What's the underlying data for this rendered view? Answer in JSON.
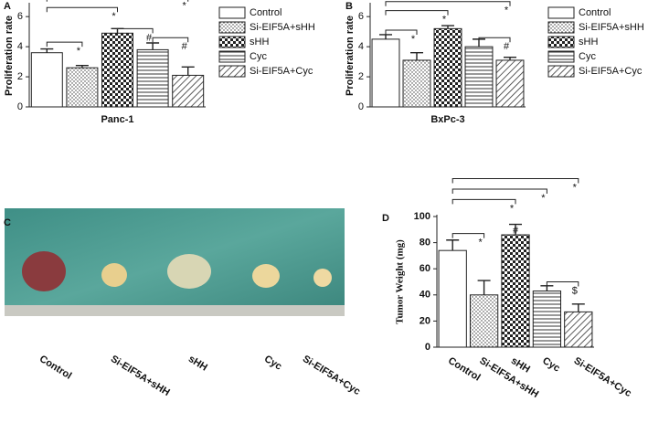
{
  "chart_data": [
    {
      "type": "bar",
      "panel": "A",
      "ylabel": "Proliferation rate",
      "xlabel": "Panc-1",
      "categories": [
        "Control",
        "Si-EIF5A+sHH",
        "sHH",
        "Cyc",
        "Si-EIF5A+Cyc"
      ],
      "values": [
        3.6,
        2.6,
        4.9,
        3.8,
        2.1
      ],
      "errors": [
        0.25,
        0.15,
        0.3,
        0.45,
        0.55
      ],
      "patterns": [
        "none",
        "dots",
        "checks",
        "hlines",
        "diagonal"
      ],
      "ylim": [
        0,
        6.8
      ],
      "yticks": [
        0,
        2,
        4,
        6
      ],
      "legend": "right",
      "annotations": [
        "*",
        "*",
        "*",
        "#",
        "#"
      ]
    },
    {
      "type": "bar",
      "panel": "B",
      "ylabel": "Proliferation rate",
      "xlabel": "BxPc-3",
      "categories": [
        "Control",
        "Si-EIF5A+sHH",
        "sHH",
        "Cyc",
        "Si-EIF5A+Cyc"
      ],
      "values": [
        4.5,
        3.1,
        5.2,
        4.0,
        3.1
      ],
      "errors": [
        0.3,
        0.5,
        0.2,
        0.5,
        0.2
      ],
      "patterns": [
        "none",
        "dots",
        "checks",
        "hlines",
        "diagonal"
      ],
      "ylim": [
        0,
        6.8
      ],
      "yticks": [
        0,
        2,
        4,
        6
      ],
      "legend": "right",
      "annotations": [
        "*",
        "*",
        "*",
        "#"
      ]
    },
    {
      "type": "bar",
      "panel": "D",
      "ylabel": "Tumor Weight (mg)",
      "categories": [
        "Control",
        "Si-EIF5A+sHH",
        "sHH",
        "Cyc",
        "Si-EIF5A+Cyc"
      ],
      "values": [
        74,
        40,
        86,
        43,
        27
      ],
      "errors": [
        8,
        11,
        8,
        4,
        6
      ],
      "patterns": [
        "none",
        "dots",
        "checks",
        "hlines",
        "diagonal"
      ],
      "ylim": [
        0,
        100
      ],
      "yticks": [
        0,
        20,
        40,
        60,
        80,
        100
      ],
      "rotate_labels": true,
      "annotations": [
        "*",
        "*",
        "*",
        "*",
        "#",
        "$"
      ]
    }
  ],
  "photo": {
    "panel": "C",
    "labels": [
      "Control",
      "Si-EIF5A+sHH",
      "sHH",
      "Cyc",
      "Si-EIF5A+Cyc"
    ]
  }
}
